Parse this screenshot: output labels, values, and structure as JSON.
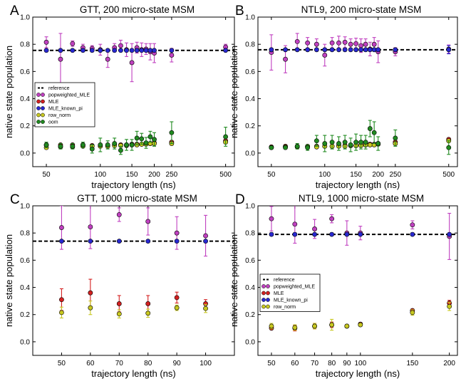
{
  "chart_data": [
    {
      "type": "scatter",
      "letter": "A",
      "title": "GTT, 200 micro-state MSM",
      "xlabel": "trajectory length (ns)",
      "ylabel": "native state population",
      "xscale": "log",
      "xlim": [
        42,
        560
      ],
      "ylim": [
        -0.1,
        1.0
      ],
      "xticks": [
        50,
        100,
        150,
        200,
        250,
        500
      ],
      "xtick_labels": [
        "50",
        "100",
        "150",
        "200",
        "250",
        "500"
      ],
      "yticks": [
        0.0,
        0.2,
        0.4,
        0.6,
        0.8,
        1.0
      ],
      "ytick_labels": [
        "0.0",
        "0.2",
        "0.4",
        "0.6",
        "0.8",
        "1.0"
      ],
      "reference": 0.755,
      "legend": {
        "position": "center-left",
        "reference_label": "reference"
      },
      "x": [
        50,
        60,
        70,
        80,
        90,
        100,
        110,
        120,
        130,
        140,
        150,
        160,
        170,
        180,
        190,
        200,
        250,
        500
      ],
      "series": [
        {
          "name": "popweighted_MLE",
          "color": "#c040c0",
          "values": [
            0.815,
            0.69,
            0.805,
            0.775,
            0.77,
            0.76,
            0.69,
            0.775,
            0.79,
            0.76,
            0.665,
            0.775,
            0.76,
            0.765,
            0.745,
            0.735,
            0.72,
            0.78
          ],
          "err": [
            0.04,
            0.19,
            0.02,
            0.025,
            0.02,
            0.04,
            0.06,
            0.03,
            0.04,
            0.05,
            0.14,
            0.04,
            0.05,
            0.04,
            0.06,
            0.07,
            0.05,
            0.02
          ]
        },
        {
          "name": "MLE",
          "color": "#d42020",
          "values": [
            0.06,
            0.06,
            0.06,
            0.06,
            0.055,
            0.055,
            0.055,
            0.06,
            0.06,
            0.06,
            0.065,
            0.065,
            0.065,
            0.07,
            0.07,
            0.075,
            0.08,
            0.09
          ],
          "err": [
            0.01,
            0.01,
            0.01,
            0.01,
            0.01,
            0.01,
            0.01,
            0.01,
            0.01,
            0.01,
            0.01,
            0.01,
            0.01,
            0.01,
            0.01,
            0.01,
            0.01,
            0.01
          ]
        },
        {
          "name": "MLE_known_pi",
          "color": "#2828d0",
          "values": [
            0.755,
            0.755,
            0.755,
            0.755,
            0.755,
            0.755,
            0.755,
            0.755,
            0.755,
            0.755,
            0.755,
            0.755,
            0.755,
            0.755,
            0.755,
            0.755,
            0.755,
            0.755
          ],
          "err": [
            0,
            0,
            0,
            0,
            0,
            0,
            0,
            0,
            0,
            0,
            0,
            0,
            0,
            0,
            0,
            0,
            0,
            0
          ]
        },
        {
          "name": "row_norm",
          "color": "#c8c820",
          "values": [
            0.04,
            0.045,
            0.045,
            0.05,
            0.05,
            0.05,
            0.05,
            0.055,
            0.055,
            0.055,
            0.06,
            0.06,
            0.065,
            0.065,
            0.07,
            0.07,
            0.07,
            0.08
          ],
          "err": [
            0.01,
            0.01,
            0.01,
            0.01,
            0.01,
            0.01,
            0.01,
            0.01,
            0.01,
            0.01,
            0.01,
            0.01,
            0.01,
            0.01,
            0.01,
            0.01,
            0.01,
            0.01
          ]
        },
        {
          "name": "oom",
          "color": "#208a20",
          "values": [
            0.06,
            0.05,
            0.05,
            0.06,
            0.03,
            0.06,
            0.06,
            0.07,
            0.02,
            0.06,
            0.06,
            0.11,
            0.105,
            0.075,
            0.12,
            0.1,
            0.15,
            0.12
          ],
          "err": [
            0.02,
            0.02,
            0.02,
            0.02,
            0.03,
            0.05,
            0.03,
            0.04,
            0.03,
            0.04,
            0.04,
            0.05,
            0.04,
            0.04,
            0.04,
            0.05,
            0.08,
            0.07
          ]
        }
      ]
    },
    {
      "type": "scatter",
      "letter": "B",
      "title": "NTL9, 200 micro-state MSM",
      "xlabel": "trajectory length (ns)",
      "ylabel": "native state population",
      "xscale": "log",
      "xlim": [
        42,
        560
      ],
      "ylim": [
        -0.1,
        1.0
      ],
      "xticks": [
        50,
        100,
        150,
        200,
        250,
        500
      ],
      "xtick_labels": [
        "50",
        "100",
        "150",
        "200",
        "250",
        "500"
      ],
      "yticks": [
        0.0,
        0.2,
        0.4,
        0.6,
        0.8,
        1.0
      ],
      "ytick_labels": [
        "0.0",
        "0.2",
        "0.4",
        "0.6",
        "0.8",
        "1.0"
      ],
      "reference": 0.76,
      "legend": null,
      "x": [
        50,
        60,
        70,
        80,
        90,
        100,
        110,
        120,
        130,
        140,
        150,
        160,
        170,
        180,
        190,
        200,
        250,
        500
      ],
      "series": [
        {
          "name": "popweighted_MLE",
          "color": "#c040c0",
          "values": [
            0.74,
            0.69,
            0.82,
            0.81,
            0.8,
            0.72,
            0.81,
            0.81,
            0.815,
            0.8,
            0.805,
            0.79,
            0.8,
            0.765,
            0.8,
            0.745,
            0.745,
            0.765
          ],
          "err": [
            0.13,
            0.1,
            0.06,
            0.04,
            0.04,
            0.08,
            0.04,
            0.05,
            0.04,
            0.04,
            0.04,
            0.05,
            0.04,
            0.05,
            0.05,
            0.08,
            0.03,
            0.03
          ]
        },
        {
          "name": "MLE",
          "color": "#d42020",
          "values": [
            0.045,
            0.05,
            0.05,
            0.05,
            0.05,
            0.05,
            0.05,
            0.055,
            0.055,
            0.055,
            0.055,
            0.06,
            0.06,
            0.065,
            0.065,
            0.07,
            0.08,
            0.1
          ],
          "err": [
            0.01,
            0.01,
            0.01,
            0.01,
            0.01,
            0.01,
            0.01,
            0.01,
            0.01,
            0.01,
            0.01,
            0.01,
            0.01,
            0.01,
            0.01,
            0.01,
            0.01,
            0.01
          ]
        },
        {
          "name": "MLE_known_pi",
          "color": "#2828d0",
          "values": [
            0.76,
            0.76,
            0.76,
            0.76,
            0.76,
            0.76,
            0.76,
            0.76,
            0.76,
            0.76,
            0.76,
            0.76,
            0.76,
            0.76,
            0.76,
            0.76,
            0.76,
            0.76
          ],
          "err": [
            0,
            0,
            0,
            0,
            0,
            0,
            0,
            0,
            0,
            0,
            0,
            0,
            0,
            0,
            0,
            0,
            0,
            0.03
          ]
        },
        {
          "name": "row_norm",
          "color": "#c8c820",
          "values": [
            0.04,
            0.045,
            0.045,
            0.045,
            0.045,
            0.05,
            0.05,
            0.05,
            0.05,
            0.055,
            0.055,
            0.055,
            0.06,
            0.06,
            0.06,
            0.065,
            0.07,
            0.09
          ],
          "err": [
            0.01,
            0.01,
            0.01,
            0.01,
            0.01,
            0.01,
            0.01,
            0.01,
            0.01,
            0.01,
            0.01,
            0.01,
            0.01,
            0.01,
            0.01,
            0.01,
            0.01,
            0.01
          ]
        },
        {
          "name": "oom",
          "color": "#208a20",
          "values": [
            0.04,
            0.04,
            0.05,
            0.04,
            0.09,
            0.07,
            0.08,
            0.07,
            0.08,
            0.06,
            0.08,
            0.08,
            0.08,
            0.18,
            0.15,
            0.07,
            0.11,
            0.04
          ],
          "err": [
            0.01,
            0.01,
            0.02,
            0.02,
            0.04,
            0.06,
            0.05,
            0.05,
            0.05,
            0.05,
            0.06,
            0.05,
            0.05,
            0.06,
            0.08,
            0.05,
            0.06,
            0.05
          ]
        }
      ]
    },
    {
      "type": "scatter",
      "letter": "C",
      "title": "GTT, 1000 micro-state MSM",
      "xlabel": "trajectory length (ns)",
      "ylabel": "native state population",
      "xscale": "linear",
      "xlim": [
        40,
        110
      ],
      "ylim": [
        -0.1,
        1.0
      ],
      "xticks": [
        50,
        60,
        70,
        80,
        90,
        100
      ],
      "xtick_labels": [
        "50",
        "60",
        "70",
        "80",
        "90",
        "100"
      ],
      "yticks": [
        0.0,
        0.2,
        0.4,
        0.6,
        0.8,
        1.0
      ],
      "ytick_labels": [
        "0.0",
        "0.2",
        "0.4",
        "0.6",
        "0.8",
        "1.0"
      ],
      "reference": 0.74,
      "legend": null,
      "x": [
        50,
        60,
        70,
        80,
        90,
        100
      ],
      "series": [
        {
          "name": "popweighted_MLE",
          "color": "#c040c0",
          "values": [
            0.84,
            0.845,
            0.935,
            0.885,
            0.8,
            0.78
          ],
          "err": [
            0.16,
            0.16,
            0.05,
            0.1,
            0.12,
            0.15
          ]
        },
        {
          "name": "MLE",
          "color": "#d42020",
          "values": [
            0.31,
            0.36,
            0.28,
            0.28,
            0.325,
            0.28
          ],
          "err": [
            0.08,
            0.1,
            0.06,
            0.06,
            0.04,
            0.03
          ]
        },
        {
          "name": "MLE_known_pi",
          "color": "#2828d0",
          "values": [
            0.74,
            0.74,
            0.74,
            0.74,
            0.74,
            0.74
          ],
          "err": [
            0,
            0,
            0,
            0,
            0,
            0
          ]
        },
        {
          "name": "row_norm",
          "color": "#c8c820",
          "values": [
            0.215,
            0.25,
            0.205,
            0.21,
            0.25,
            0.245
          ],
          "err": [
            0.04,
            0.05,
            0.03,
            0.03,
            0.02,
            0.03
          ]
        }
      ]
    },
    {
      "type": "scatter",
      "letter": "D",
      "title": "NTL9, 1000 micro-state MSM",
      "xlabel": "trajectory length (ns)",
      "ylabel": "native state population",
      "xscale": "log",
      "xlim": [
        45,
        213
      ],
      "ylim": [
        -0.1,
        1.0
      ],
      "xticks": [
        50,
        60,
        70,
        80,
        90,
        100,
        150,
        200
      ],
      "xtick_labels": [
        "50",
        "60",
        "70",
        "80",
        "90",
        "100",
        "150",
        "200"
      ],
      "yticks": [
        0.0,
        0.2,
        0.4,
        0.6,
        0.8,
        1.0
      ],
      "ytick_labels": [
        "0.0",
        "0.2",
        "0.4",
        "0.6",
        "0.8",
        "1.0"
      ],
      "reference": 0.79,
      "legend": {
        "position": "center-left",
        "reference_label": "reference"
      },
      "x": [
        50,
        60,
        70,
        80,
        90,
        100,
        150,
        200
      ],
      "series": [
        {
          "name": "popweighted_MLE",
          "color": "#c040c0",
          "values": [
            0.905,
            0.865,
            0.83,
            0.905,
            0.8,
            0.8,
            0.86,
            0.775
          ],
          "err": [
            0.09,
            0.14,
            0.07,
            0.03,
            0.09,
            0.05,
            0.03,
            0.17
          ]
        },
        {
          "name": "MLE",
          "color": "#d42020",
          "values": [
            0.1,
            0.1,
            0.115,
            0.125,
            0.115,
            0.13,
            0.23,
            0.285
          ],
          "err": [
            0.01,
            0.02,
            0.02,
            0.02,
            0.01,
            0.01,
            0.01,
            0.02
          ]
        },
        {
          "name": "MLE_known_pi",
          "color": "#2828d0",
          "values": [
            0.79,
            0.79,
            0.79,
            0.79,
            0.79,
            0.79,
            0.79,
            0.79
          ],
          "err": [
            0,
            0,
            0,
            0,
            0,
            0,
            0,
            0
          ]
        },
        {
          "name": "row_norm",
          "color": "#c8c820",
          "values": [
            0.115,
            0.105,
            0.115,
            0.125,
            0.115,
            0.125,
            0.215,
            0.26
          ],
          "err": [
            0.02,
            0.02,
            0.02,
            0.04,
            0.01,
            0.01,
            0.02,
            0.03
          ]
        }
      ]
    }
  ]
}
